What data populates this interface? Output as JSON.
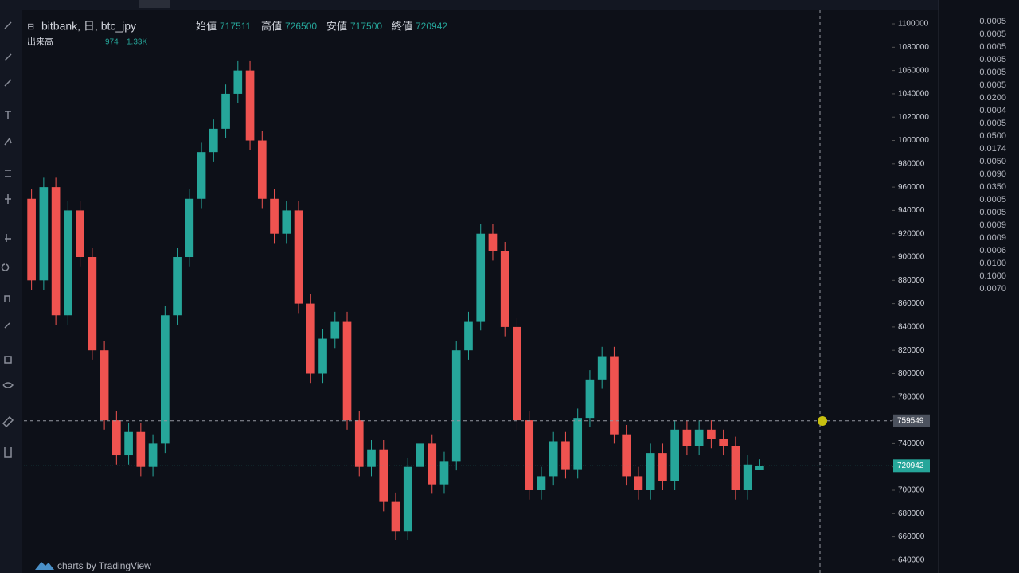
{
  "header": {
    "symbol": "bitbank, 日, btc_jpy",
    "open_label": "始値",
    "high_label": "高値",
    "low_label": "安値",
    "close_label": "終値",
    "volume_label": "出来高",
    "volume": "974",
    "volume_ma": "1.33K",
    "watermark": "charts by TradingView"
  },
  "chart_data": {
    "type": "candlestick",
    "up_color": "#26a69a",
    "down_color": "#ef5350",
    "open": [
      950000,
      880000,
      960000,
      850000,
      940000,
      900000,
      820000,
      760000,
      730000,
      750000,
      720000,
      740000,
      850000,
      900000,
      950000,
      990000,
      1010000,
      1040000,
      1060000,
      1000000,
      950000,
      920000,
      940000,
      860000,
      800000,
      830000,
      845000,
      760000,
      720000,
      735000,
      690000,
      665000,
      720000,
      740000,
      705000,
      725000,
      820000,
      845000,
      920000,
      905000,
      840000,
      760000,
      700000,
      712000,
      742000,
      718000,
      762000,
      795000,
      815000,
      748000,
      712000,
      700000,
      732000,
      708000,
      752000,
      738000,
      752000,
      744000,
      738000,
      700000,
      717511
    ],
    "high": [
      958000,
      968000,
      968000,
      948000,
      948000,
      908000,
      828000,
      768000,
      758000,
      758000,
      748000,
      858000,
      908000,
      958000,
      998000,
      1018000,
      1048000,
      1068000,
      1068000,
      1008000,
      958000,
      948000,
      948000,
      868000,
      838000,
      853000,
      853000,
      768000,
      743000,
      743000,
      698000,
      728000,
      748000,
      748000,
      733000,
      828000,
      853000,
      928000,
      928000,
      913000,
      848000,
      768000,
      720000,
      750000,
      750000,
      770000,
      803000,
      823000,
      823000,
      756000,
      720000,
      740000,
      740000,
      760000,
      760000,
      760000,
      760000,
      752000,
      746000,
      730000,
      726500
    ],
    "low": [
      872000,
      872000,
      842000,
      842000,
      892000,
      812000,
      752000,
      722000,
      722000,
      712000,
      712000,
      732000,
      842000,
      892000,
      942000,
      982000,
      1002000,
      1032000,
      992000,
      942000,
      912000,
      912000,
      852000,
      792000,
      792000,
      822000,
      752000,
      712000,
      712000,
      682000,
      657000,
      657000,
      712000,
      697000,
      697000,
      717000,
      812000,
      837000,
      897000,
      832000,
      752000,
      692000,
      692000,
      704000,
      710000,
      710000,
      754000,
      787000,
      740000,
      704000,
      692000,
      692000,
      700000,
      700000,
      730000,
      730000,
      736000,
      730000,
      692000,
      692000,
      717500
    ],
    "close": [
      880000,
      960000,
      850000,
      940000,
      900000,
      820000,
      760000,
      730000,
      750000,
      720000,
      740000,
      850000,
      900000,
      950000,
      990000,
      1010000,
      1040000,
      1060000,
      1000000,
      950000,
      920000,
      940000,
      860000,
      800000,
      830000,
      845000,
      760000,
      720000,
      735000,
      690000,
      665000,
      720000,
      740000,
      705000,
      725000,
      820000,
      845000,
      920000,
      905000,
      840000,
      760000,
      700000,
      712000,
      742000,
      718000,
      762000,
      795000,
      815000,
      748000,
      712000,
      700000,
      732000,
      708000,
      752000,
      738000,
      752000,
      744000,
      738000,
      700000,
      722000,
      720942
    ],
    "ylim": [
      629000,
      1120500
    ],
    "yticks": [
      640000,
      660000,
      680000,
      700000,
      720000,
      740000,
      760000,
      780000,
      800000,
      820000,
      840000,
      860000,
      880000,
      900000,
      920000,
      940000,
      960000,
      980000,
      1000000,
      1020000,
      1040000,
      1060000,
      1080000,
      1100000
    ],
    "crosshair_price": 759549
  },
  "side_panel": {
    "values": [
      "0.0005",
      "0.0005",
      "0.0005",
      "0.0005",
      "0.0005",
      "0.0005",
      "0.0200",
      "0.0004",
      "0.0005",
      "0.0500",
      "0.0174",
      "0.0050",
      "0.0090",
      "0.0350",
      "0.0005",
      "0.0005",
      "0.0009",
      "0.0009",
      "0.0006",
      "0.0100",
      "0.1000",
      "0.0070"
    ]
  }
}
